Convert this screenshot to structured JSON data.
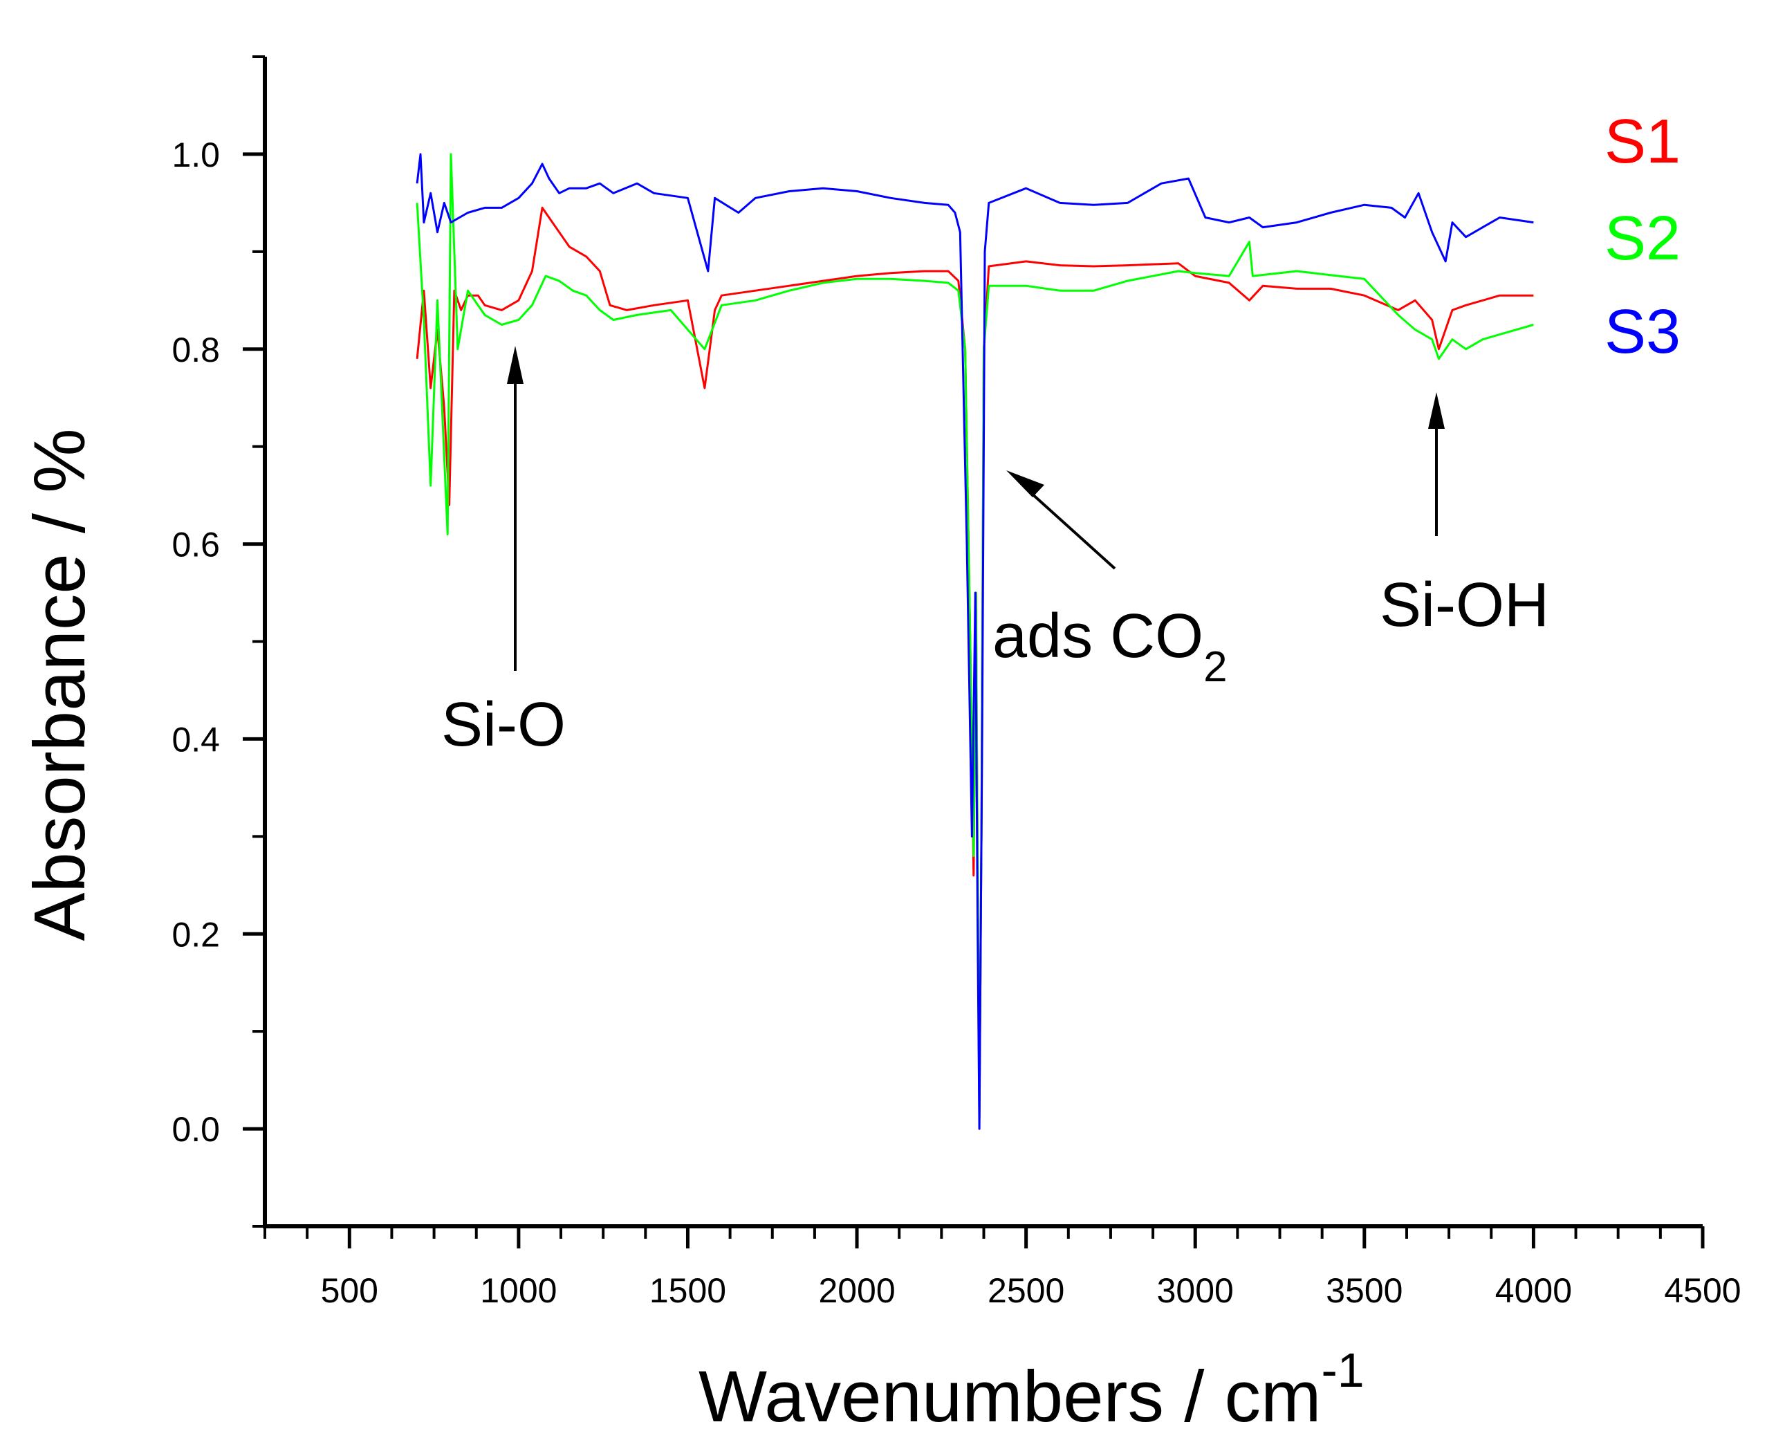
{
  "chart_data": {
    "type": "line",
    "title": "",
    "xlabel": "Wavenumbers / cm",
    "xlabel_superscript": "-1",
    "ylabel": "Absorbance / %",
    "xlim": [
      250,
      4500
    ],
    "ylim": [
      -0.1,
      1.1
    ],
    "xticks": [
      500,
      1000,
      1500,
      2000,
      2500,
      3000,
      3500,
      4000,
      4500
    ],
    "xtick_labels": [
      "500",
      "1000",
      "1500",
      "2000",
      "2500",
      "3000",
      "3500",
      "4000",
      "4500"
    ],
    "yticks": [
      0.0,
      0.2,
      0.4,
      0.6,
      0.8,
      1.0
    ],
    "ytick_labels": [
      "0.0",
      "0.2",
      "0.4",
      "0.6",
      "0.8",
      "1.0"
    ],
    "grid": false,
    "legend_position": "top-right",
    "series": [
      {
        "name": "S1",
        "color": "#ff0000",
        "points": [
          [
            700,
            0.79
          ],
          [
            720,
            0.86
          ],
          [
            740,
            0.76
          ],
          [
            760,
            0.82
          ],
          [
            780,
            0.74
          ],
          [
            795,
            0.64
          ],
          [
            810,
            0.86
          ],
          [
            830,
            0.84
          ],
          [
            850,
            0.855
          ],
          [
            880,
            0.855
          ],
          [
            900,
            0.845
          ],
          [
            950,
            0.84
          ],
          [
            1000,
            0.85
          ],
          [
            1040,
            0.88
          ],
          [
            1070,
            0.945
          ],
          [
            1090,
            0.935
          ],
          [
            1120,
            0.92
          ],
          [
            1150,
            0.905
          ],
          [
            1200,
            0.895
          ],
          [
            1240,
            0.88
          ],
          [
            1270,
            0.845
          ],
          [
            1320,
            0.84
          ],
          [
            1400,
            0.845
          ],
          [
            1500,
            0.85
          ],
          [
            1550,
            0.76
          ],
          [
            1580,
            0.84
          ],
          [
            1600,
            0.855
          ],
          [
            1700,
            0.86
          ],
          [
            1800,
            0.865
          ],
          [
            1900,
            0.87
          ],
          [
            2000,
            0.875
          ],
          [
            2100,
            0.878
          ],
          [
            2200,
            0.88
          ],
          [
            2270,
            0.88
          ],
          [
            2300,
            0.87
          ],
          [
            2320,
            0.8
          ],
          [
            2335,
            0.5
          ],
          [
            2345,
            0.26
          ],
          [
            2352,
            0.55
          ],
          [
            2358,
            0.2
          ],
          [
            2362,
            0.01
          ],
          [
            2368,
            0.3
          ],
          [
            2375,
            0.8
          ],
          [
            2390,
            0.885
          ],
          [
            2500,
            0.89
          ],
          [
            2600,
            0.886
          ],
          [
            2700,
            0.885
          ],
          [
            2800,
            0.886
          ],
          [
            2950,
            0.888
          ],
          [
            3000,
            0.875
          ],
          [
            3100,
            0.868
          ],
          [
            3160,
            0.85
          ],
          [
            3200,
            0.865
          ],
          [
            3300,
            0.862
          ],
          [
            3400,
            0.862
          ],
          [
            3500,
            0.855
          ],
          [
            3600,
            0.84
          ],
          [
            3650,
            0.85
          ],
          [
            3700,
            0.83
          ],
          [
            3720,
            0.8
          ],
          [
            3760,
            0.84
          ],
          [
            3800,
            0.845
          ],
          [
            3850,
            0.85
          ],
          [
            3900,
            0.855
          ],
          [
            4000,
            0.855
          ]
        ]
      },
      {
        "name": "S2",
        "color": "#00ff00",
        "points": [
          [
            700,
            0.95
          ],
          [
            720,
            0.83
          ],
          [
            740,
            0.66
          ],
          [
            760,
            0.85
          ],
          [
            790,
            0.61
          ],
          [
            800,
            1.0
          ],
          [
            820,
            0.8
          ],
          [
            850,
            0.86
          ],
          [
            900,
            0.835
          ],
          [
            950,
            0.825
          ],
          [
            1000,
            0.83
          ],
          [
            1040,
            0.845
          ],
          [
            1080,
            0.875
          ],
          [
            1120,
            0.87
          ],
          [
            1160,
            0.86
          ],
          [
            1200,
            0.855
          ],
          [
            1240,
            0.84
          ],
          [
            1280,
            0.83
          ],
          [
            1350,
            0.835
          ],
          [
            1450,
            0.84
          ],
          [
            1550,
            0.8
          ],
          [
            1600,
            0.845
          ],
          [
            1700,
            0.85
          ],
          [
            1800,
            0.86
          ],
          [
            1900,
            0.868
          ],
          [
            2000,
            0.872
          ],
          [
            2100,
            0.872
          ],
          [
            2200,
            0.87
          ],
          [
            2270,
            0.868
          ],
          [
            2300,
            0.86
          ],
          [
            2320,
            0.8
          ],
          [
            2335,
            0.5
          ],
          [
            2345,
            0.28
          ],
          [
            2352,
            0.55
          ],
          [
            2358,
            0.2
          ],
          [
            2362,
            0.01
          ],
          [
            2368,
            0.3
          ],
          [
            2375,
            0.8
          ],
          [
            2390,
            0.865
          ],
          [
            2500,
            0.865
          ],
          [
            2600,
            0.86
          ],
          [
            2700,
            0.86
          ],
          [
            2800,
            0.87
          ],
          [
            2950,
            0.88
          ],
          [
            3000,
            0.878
          ],
          [
            3100,
            0.875
          ],
          [
            3160,
            0.91
          ],
          [
            3170,
            0.875
          ],
          [
            3250,
            0.878
          ],
          [
            3300,
            0.88
          ],
          [
            3400,
            0.876
          ],
          [
            3500,
            0.872
          ],
          [
            3600,
            0.835
          ],
          [
            3650,
            0.82
          ],
          [
            3700,
            0.81
          ],
          [
            3720,
            0.79
          ],
          [
            3760,
            0.81
          ],
          [
            3800,
            0.8
          ],
          [
            3850,
            0.81
          ],
          [
            3900,
            0.815
          ],
          [
            4000,
            0.825
          ]
        ]
      },
      {
        "name": "S3",
        "color": "#0000ff",
        "points": [
          [
            700,
            0.97
          ],
          [
            710,
            1.0
          ],
          [
            720,
            0.93
          ],
          [
            740,
            0.96
          ],
          [
            760,
            0.92
          ],
          [
            780,
            0.95
          ],
          [
            800,
            0.93
          ],
          [
            850,
            0.94
          ],
          [
            900,
            0.945
          ],
          [
            950,
            0.945
          ],
          [
            1000,
            0.955
          ],
          [
            1040,
            0.97
          ],
          [
            1070,
            0.99
          ],
          [
            1090,
            0.975
          ],
          [
            1120,
            0.96
          ],
          [
            1150,
            0.965
          ],
          [
            1200,
            0.965
          ],
          [
            1240,
            0.97
          ],
          [
            1280,
            0.96
          ],
          [
            1350,
            0.97
          ],
          [
            1400,
            0.96
          ],
          [
            1500,
            0.955
          ],
          [
            1560,
            0.88
          ],
          [
            1580,
            0.955
          ],
          [
            1650,
            0.94
          ],
          [
            1700,
            0.955
          ],
          [
            1800,
            0.962
          ],
          [
            1900,
            0.965
          ],
          [
            2000,
            0.962
          ],
          [
            2100,
            0.955
          ],
          [
            2200,
            0.95
          ],
          [
            2270,
            0.948
          ],
          [
            2290,
            0.94
          ],
          [
            2305,
            0.92
          ],
          [
            2325,
            0.6
          ],
          [
            2340,
            0.3
          ],
          [
            2350,
            0.55
          ],
          [
            2357,
            0.2
          ],
          [
            2362,
            0.0
          ],
          [
            2370,
            0.4
          ],
          [
            2378,
            0.9
          ],
          [
            2390,
            0.95
          ],
          [
            2500,
            0.965
          ],
          [
            2600,
            0.95
          ],
          [
            2700,
            0.948
          ],
          [
            2800,
            0.95
          ],
          [
            2900,
            0.97
          ],
          [
            2980,
            0.975
          ],
          [
            3030,
            0.935
          ],
          [
            3100,
            0.93
          ],
          [
            3160,
            0.935
          ],
          [
            3200,
            0.925
          ],
          [
            3300,
            0.93
          ],
          [
            3400,
            0.94
          ],
          [
            3500,
            0.948
          ],
          [
            3580,
            0.945
          ],
          [
            3620,
            0.935
          ],
          [
            3660,
            0.96
          ],
          [
            3700,
            0.92
          ],
          [
            3740,
            0.89
          ],
          [
            3760,
            0.93
          ],
          [
            3800,
            0.915
          ],
          [
            3850,
            0.925
          ],
          [
            3900,
            0.935
          ],
          [
            4000,
            0.93
          ]
        ]
      }
    ],
    "annotations": [
      {
        "id": "si-o",
        "text": "Si-O",
        "arrow_to_x": 1000,
        "arrow_to_y": 0.8
      },
      {
        "id": "ads-co2",
        "text": "ads CO",
        "subscript": "2",
        "arrow_to_x": 2380,
        "arrow_to_y": 0.69
      },
      {
        "id": "si-oh",
        "text": "Si-OH",
        "arrow_to_x": 3720,
        "arrow_to_y": 0.76
      }
    ]
  }
}
